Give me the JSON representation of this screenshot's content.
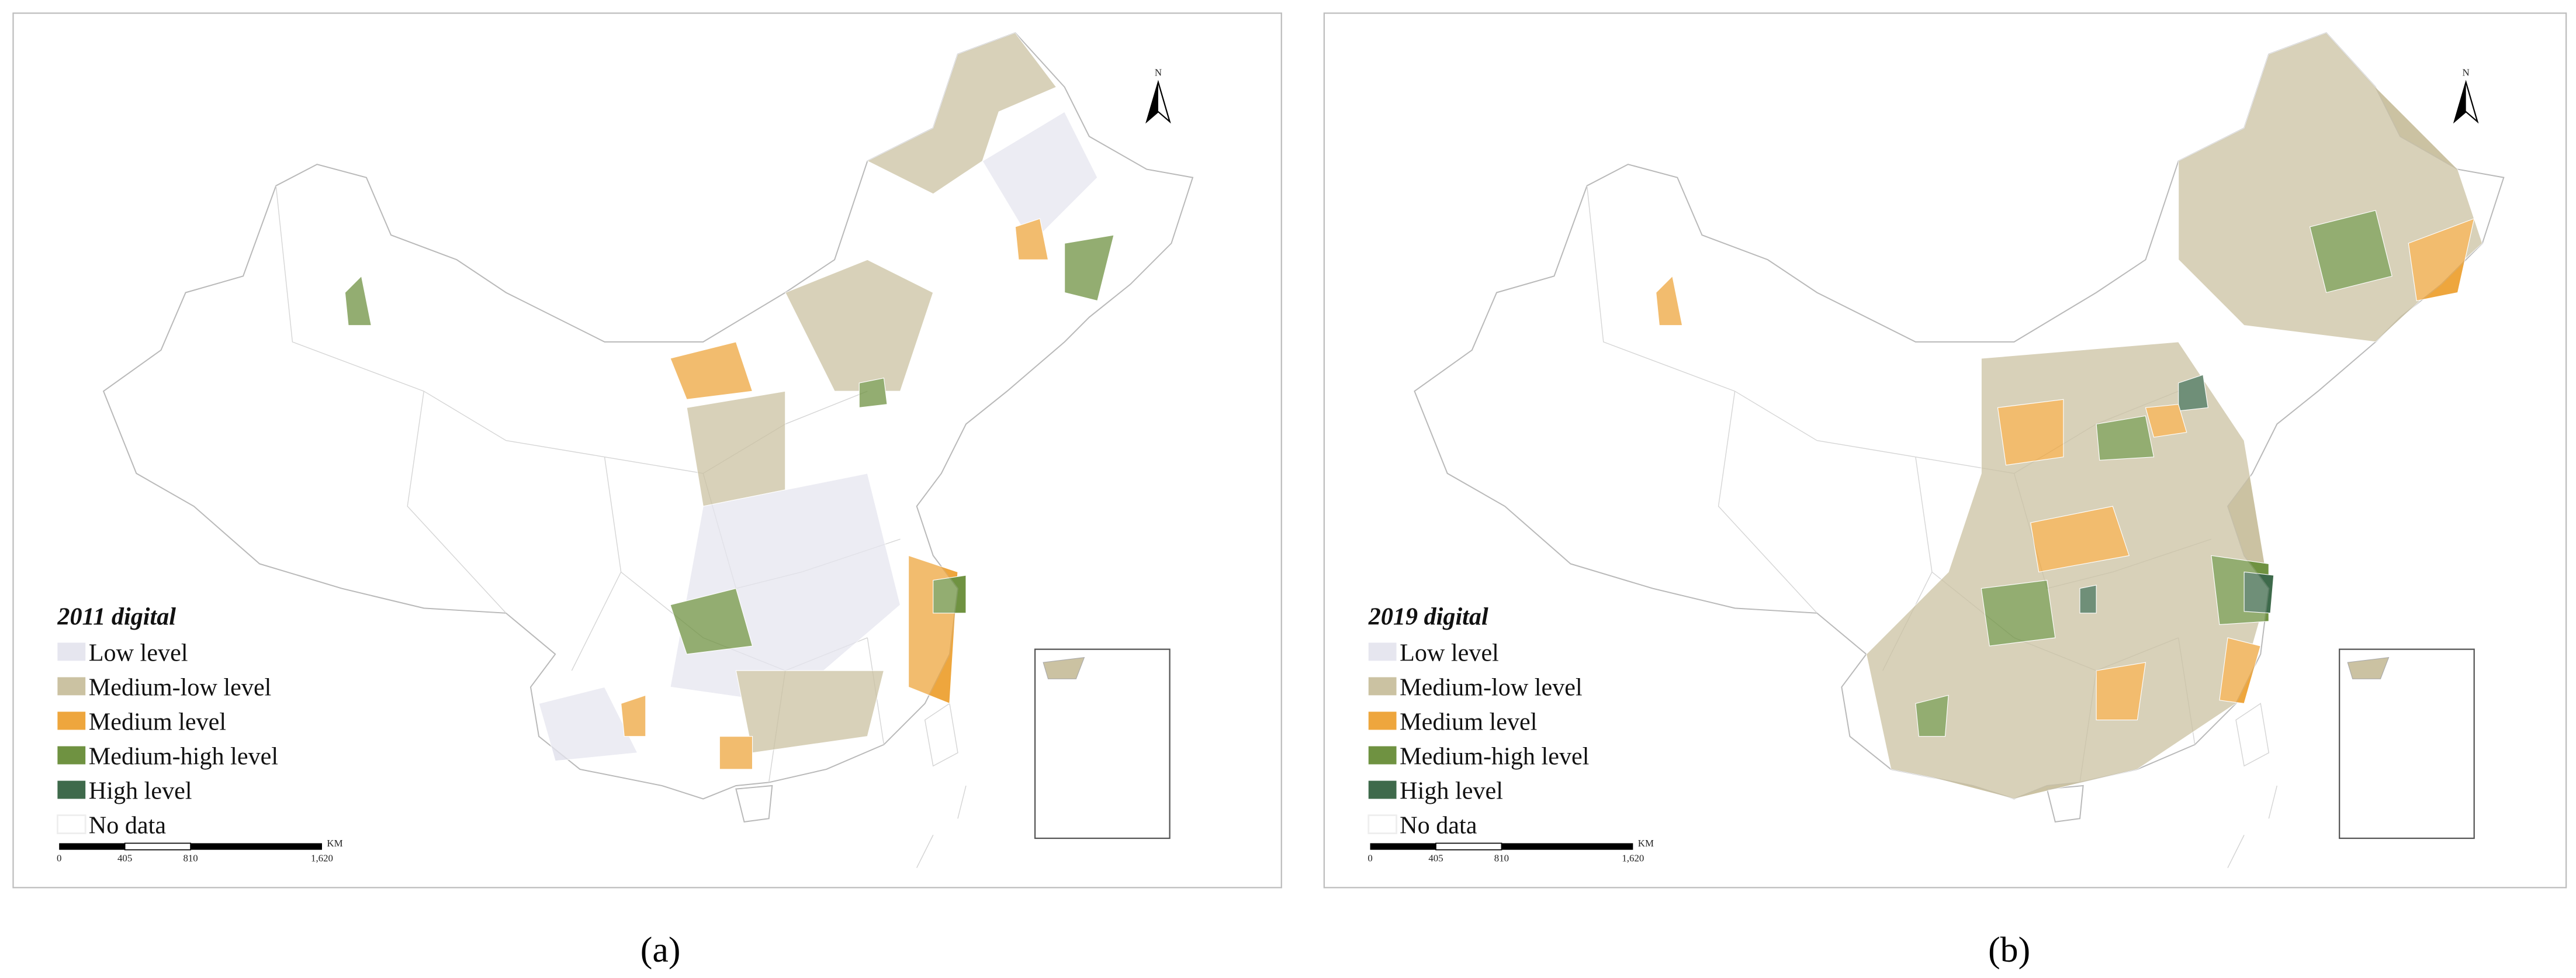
{
  "panels": [
    {
      "title": "2011 digital",
      "legend": [
        "Low level",
        "Medium-low level",
        "Medium level",
        "Medium-high level",
        "High level",
        "No data"
      ],
      "scale": {
        "labels": [
          "0",
          "405",
          "810",
          "1,620"
        ],
        "unit": "KM"
      },
      "north": "N",
      "caption": "(a)"
    },
    {
      "title": "2019 digital",
      "legend": [
        "Low level",
        "Medium-low level",
        "Medium level",
        "Medium-high level",
        "High level",
        "No data"
      ],
      "scale": {
        "labels": [
          "0",
          "405",
          "810",
          "1,620"
        ],
        "unit": "KM"
      },
      "north": "N",
      "caption": "(b)"
    }
  ]
}
